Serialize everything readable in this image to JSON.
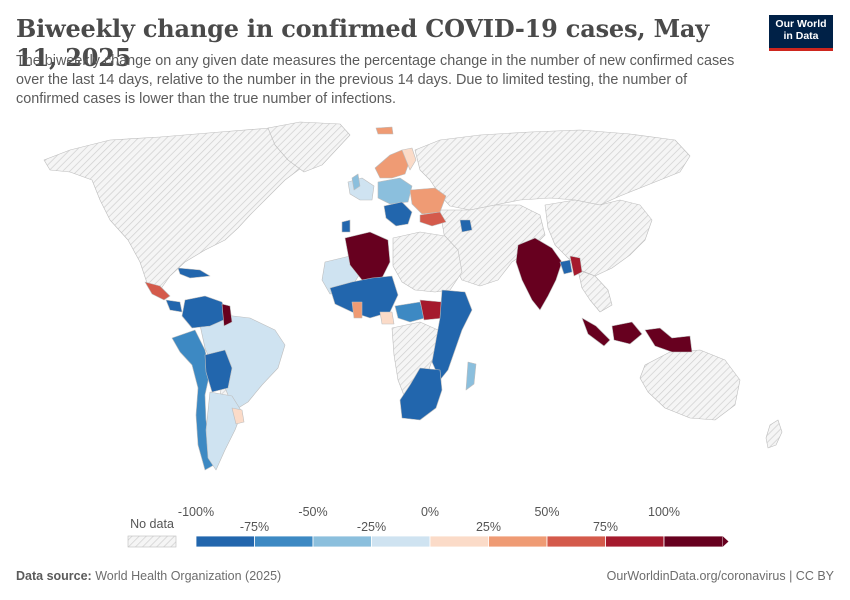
{
  "header": {
    "title": "Biweekly change in confirmed COVID-19 cases, May 11, 2025",
    "subtitle": "The biweekly change on any given date measures the percentage change in the number of new confirmed cases over the last 14 days, relative to the number in the previous 14 days. Due to limited testing, the number of confirmed cases is lower than the true number of infections."
  },
  "logo": {
    "line1": "Our World",
    "line2": "in Data",
    "bg": "#002147",
    "accent": "#ce261e"
  },
  "legend": {
    "no_data_label": "No data",
    "upper_ticks": [
      "-100%",
      "-50%",
      "0%",
      "50%",
      "100%"
    ],
    "lower_ticks": [
      "-75%",
      "-25%",
      "25%",
      "75%"
    ],
    "bins": [
      {
        "from": -100,
        "to": -75,
        "color": "#2266ad"
      },
      {
        "from": -75,
        "to": -50,
        "color": "#3d89c3"
      },
      {
        "from": -50,
        "to": -25,
        "color": "#8bbfdd"
      },
      {
        "from": -25,
        "to": 0,
        "color": "#cfe3f1"
      },
      {
        "from": 0,
        "to": 25,
        "color": "#fbdbc8"
      },
      {
        "from": 25,
        "to": 50,
        "color": "#ef9b74"
      },
      {
        "from": 50,
        "to": 75,
        "color": "#d45a4b"
      },
      {
        "from": 75,
        "to": 100,
        "color": "#a51a2d"
      },
      {
        "from": 100,
        "to": 150,
        "color": "#67001f"
      }
    ]
  },
  "footer": {
    "source_label": "Data source:",
    "source": "World Health Organization (2025)",
    "credit": "OurWorldinData.org/coronavirus | CC BY"
  }
}
